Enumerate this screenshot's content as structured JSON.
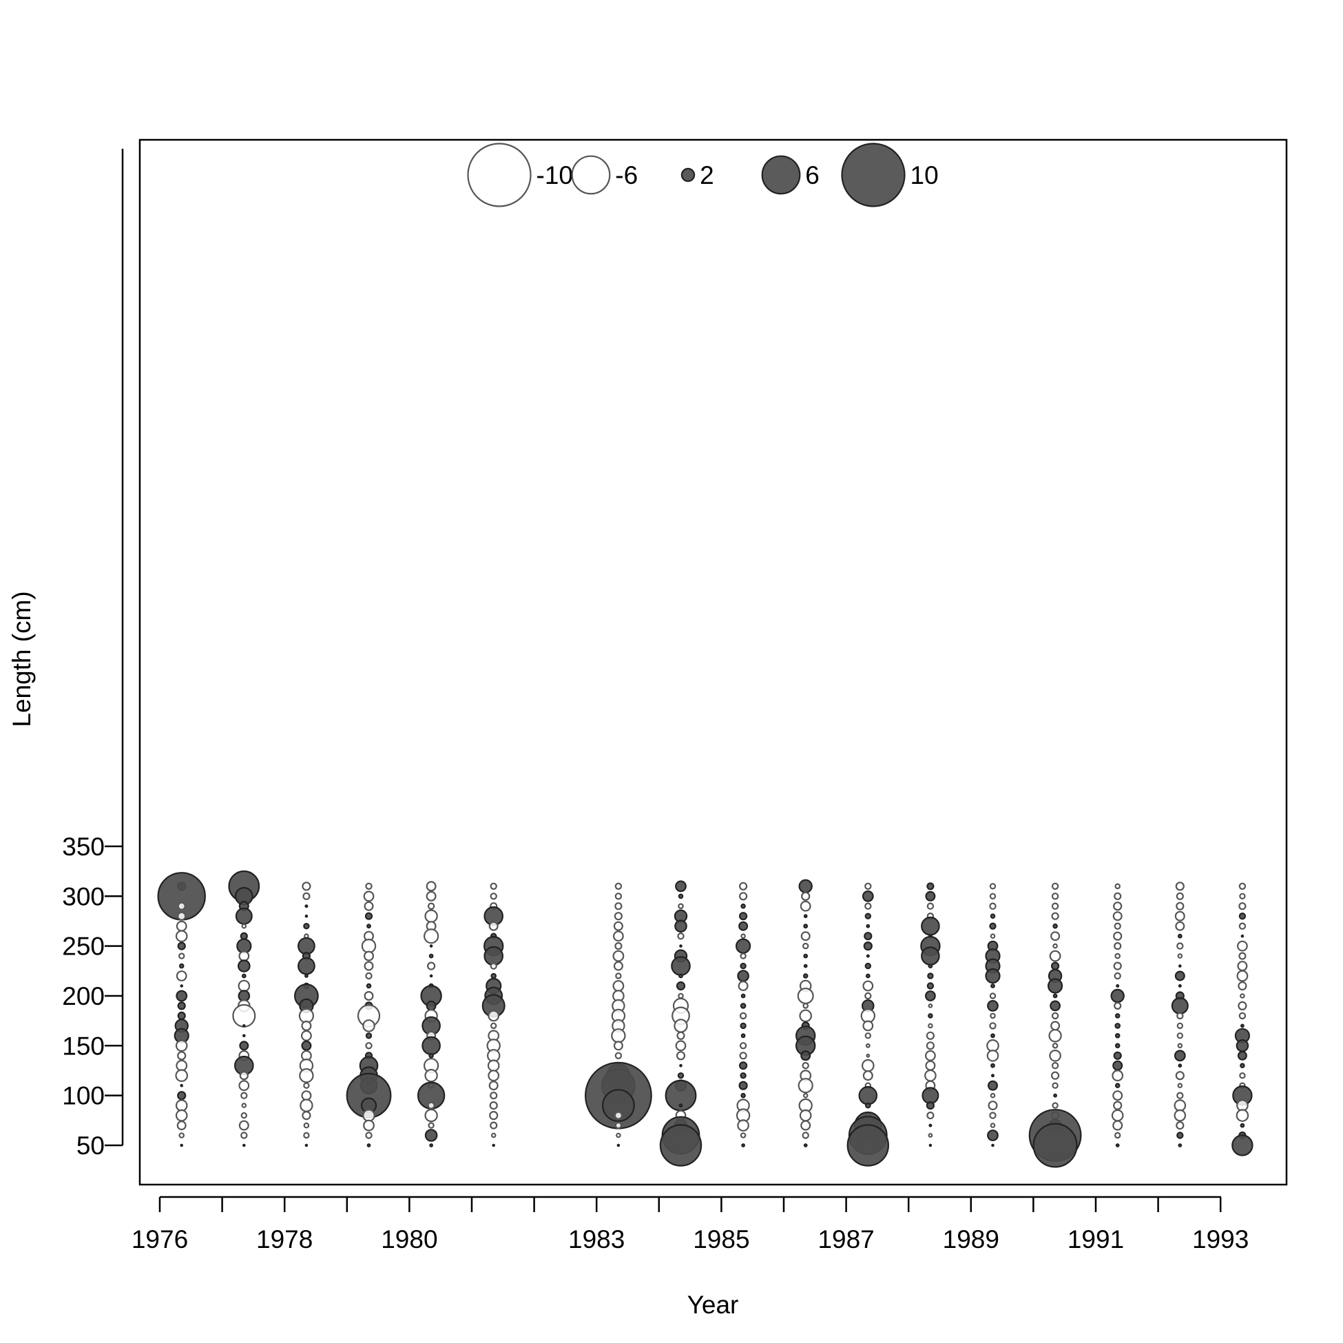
{
  "chart_data": {
    "type": "scatter",
    "subtype": "bubble",
    "title": "",
    "xlabel": "Year",
    "ylabel": "Length (cm)",
    "xlim": [
      1975.7,
      1994.1
    ],
    "ylim": [
      38,
      352
    ],
    "x_ticks": [
      1976,
      1977,
      1978,
      1979,
      1980,
      1981,
      1982,
      1983,
      1984,
      1985,
      1986,
      1987,
      1988,
      1989,
      1990,
      1991,
      1992,
      1993
    ],
    "x_tick_labels": [
      "1976",
      "1978",
      "1980",
      "1983",
      "1985",
      "1987",
      "1989",
      "1991",
      "1993"
    ],
    "y_ticks": [
      50,
      100,
      150,
      200,
      250,
      300,
      350
    ],
    "y_tick_labels": [
      "50",
      "100",
      "150",
      "200",
      "250",
      "300",
      "350"
    ],
    "grid": false,
    "legend": {
      "placement": "top-center",
      "entries": [
        {
          "label": "-10",
          "value": -10
        },
        {
          "label": "-6",
          "value": -6
        },
        {
          "label": "2",
          "value": 2
        },
        {
          "label": "6",
          "value": 6
        },
        {
          "label": "10",
          "value": 10
        }
      ]
    },
    "colors": {
      "positive_fill": "#4d4d4d",
      "positive_stroke": "#222222",
      "negative_fill": "#ffffff",
      "negative_stroke": "#555555"
    },
    "lengths": [
      310,
      300,
      290,
      280,
      270,
      260,
      250,
      240,
      230,
      220,
      210,
      200,
      190,
      180,
      170,
      160,
      150,
      140,
      130,
      120,
      110,
      100,
      90,
      80,
      70,
      60,
      50
    ],
    "series": [
      {
        "x": 1976.35,
        "residuals": [
          1.2,
          7.5,
          -1.1,
          -1.2,
          -1.5,
          -1.7,
          1.1,
          -0.8,
          0.6,
          -1.5,
          0.2,
          1.6,
          1.1,
          1.1,
          2.0,
          2.2,
          -1.7,
          -1.2,
          -1.6,
          -1.8,
          0.2,
          1.2,
          -1.7,
          -1.7,
          -1.3,
          -0.7,
          0.2
        ]
      },
      {
        "x": 1977.35,
        "residuals": [
          4.8,
          2.7,
          1.4,
          2.5,
          -0.6,
          1.0,
          2.2,
          -1.5,
          1.8,
          0.5,
          -1.7,
          1.7,
          -1.8,
          -3.5,
          0.2,
          0.2,
          1.3,
          -1.5,
          2.9,
          -1.2,
          -1.5,
          -0.9,
          -0.6,
          -0.8,
          -1.4,
          -0.9,
          0.2
        ]
      },
      {
        "x": 1978.35,
        "residuals": [
          -1.2,
          -1.0,
          0.3,
          0.2,
          0.8,
          -0.6,
          2.6,
          1.1,
          2.6,
          0.4,
          0.8,
          3.7,
          2.1,
          -2.2,
          -1.4,
          -1.5,
          1.4,
          -1.5,
          -2.0,
          -2.1,
          -0.8,
          -1.4,
          -1.9,
          -1.2,
          -0.7,
          -0.8,
          0.2
        ]
      },
      {
        "x": 1979.35,
        "residuals": [
          -0.9,
          -1.5,
          -1.3,
          1.0,
          0.5,
          -1.4,
          -2.1,
          -1.4,
          -1.3,
          -0.9,
          0.6,
          -1.3,
          1.1,
          -3.4,
          -1.8,
          0.8,
          -0.9,
          1.0,
          2.8,
          2.7,
          2.6,
          7.0,
          2.3,
          -1.8,
          -1.6,
          -0.9,
          0.4
        ]
      },
      {
        "x": 1980.35,
        "residuals": [
          -1.4,
          -1.4,
          -0.9,
          -1.9,
          -1.4,
          -2.2,
          0.2,
          0.5,
          -1.1,
          0.2,
          0.6,
          3.2,
          1.4,
          -1.9,
          2.8,
          -1.3,
          2.8,
          0.6,
          -2.2,
          -1.9,
          -0.8,
          4.2,
          -1.0,
          -1.9,
          -0.8,
          1.8,
          0.4
        ]
      },
      {
        "x": 1981.35,
        "residuals": [
          -0.9,
          -0.9,
          -1.0,
          2.9,
          -1.3,
          0.8,
          3.0,
          2.9,
          -0.9,
          0.7,
          2.3,
          2.7,
          3.5,
          -1.6,
          -0.8,
          -1.6,
          -2.0,
          -1.9,
          -1.7,
          -1.6,
          -1.3,
          -1.0,
          -1.1,
          -1.2,
          -1.0,
          -0.6,
          0.2
        ]
      },
      {
        "x": 1983.35,
        "residuals": [
          -0.9,
          -0.9,
          -1.0,
          -1.1,
          -1.3,
          -1.5,
          -1.0,
          -1.6,
          -1.3,
          -0.8,
          -1.6,
          -1.7,
          -1.9,
          -2.0,
          -1.9,
          -2.1,
          -1.3,
          -0.9,
          0.5,
          3.6,
          5.2,
          10.5,
          5.0,
          -1.1,
          -0.9,
          -0.6,
          0.2
        ]
      },
      {
        "x": 1984.35,
        "residuals": [
          1.6,
          0.6,
          -0.7,
          1.9,
          1.8,
          -0.9,
          0.2,
          1.9,
          2.9,
          0.5,
          1.2,
          -0.7,
          -2.3,
          -2.7,
          -2.0,
          -1.1,
          -1.5,
          -1.2,
          0.2,
          0.8,
          1.7,
          4.8,
          0.4,
          -1.5,
          1.9,
          5.9,
          6.5
        ]
      },
      {
        "x": 1985.35,
        "residuals": [
          -1.1,
          -1.1,
          0.6,
          1.1,
          1.3,
          -0.6,
          2.2,
          -0.8,
          0.8,
          1.7,
          -1.4,
          0.5,
          0.7,
          -0.9,
          0.8,
          0.5,
          -0.9,
          -1.0,
          1.1,
          0.8,
          1.2,
          0.6,
          -1.9,
          -2.0,
          -1.7,
          -0.7,
          0.4
        ]
      },
      {
        "x": 1986.35,
        "residuals": [
          2.0,
          -1.2,
          -1.5,
          0.4,
          0.5,
          -1.3,
          -0.8,
          0.5,
          0.4,
          0.6,
          -1.7,
          -2.4,
          -0.7,
          -1.8,
          1.1,
          3.0,
          3.0,
          1.4,
          -0.9,
          -1.6,
          -2.2,
          -0.6,
          -2.0,
          -1.7,
          -1.4,
          -0.9,
          0.4
        ]
      },
      {
        "x": 1987.35,
        "residuals": [
          -0.9,
          1.6,
          -0.9,
          0.8,
          0.4,
          1.1,
          1.2,
          0.3,
          0.8,
          0.5,
          -1.5,
          -0.9,
          1.8,
          -2.1,
          -1.5,
          -0.8,
          -0.5,
          -0.4,
          -1.8,
          -1.4,
          -0.8,
          2.8,
          0.7,
          -0.8,
          4.2,
          6.0,
          6.5
        ]
      },
      {
        "x": 1988.35,
        "residuals": [
          1.0,
          1.4,
          -0.9,
          -0.9,
          2.8,
          0.4,
          3.0,
          2.8,
          0.5,
          0.8,
          0.9,
          1.5,
          -0.5,
          0.6,
          -0.6,
          -1.1,
          -1.1,
          -1.5,
          -1.4,
          -1.7,
          -1.4,
          2.5,
          1.1,
          -1.0,
          0.3,
          -0.5,
          0.2
        ]
      },
      {
        "x": 1989.35,
        "residuals": [
          -0.8,
          -0.8,
          -0.9,
          0.6,
          0.9,
          -0.6,
          1.5,
          2.2,
          2.2,
          2.2,
          0.5,
          -0.8,
          1.6,
          -0.7,
          -0.9,
          0.5,
          -1.8,
          -1.7,
          0.5,
          0.3,
          1.4,
          -0.6,
          -1.3,
          -0.9,
          -0.6,
          1.6,
          0.2
        ]
      },
      {
        "x": 1990.35,
        "residuals": [
          -0.9,
          -0.9,
          -0.9,
          -1.0,
          0.6,
          -1.3,
          -0.6,
          -1.6,
          1.1,
          2.0,
          2.2,
          0.5,
          1.5,
          -0.9,
          -1.3,
          -1.9,
          -0.7,
          -1.7,
          -0.9,
          -1.1,
          -0.8,
          0.4,
          -0.8,
          -1.1,
          1.9,
          8.2,
          6.9
        ]
      },
      {
        "x": 1991.35,
        "residuals": [
          -0.7,
          -1.0,
          -1.2,
          -1.3,
          -0.9,
          -1.2,
          -1.0,
          -0.7,
          -1.1,
          -0.9,
          0.3,
          2.0,
          -1.0,
          0.6,
          0.7,
          0.6,
          0.6,
          1.1,
          1.4,
          -1.6,
          0.6,
          -1.4,
          -1.2,
          -1.7,
          -1.4,
          -0.8,
          0.4
        ]
      },
      {
        "x": 1992.35,
        "residuals": [
          -1.2,
          -1.0,
          -1.1,
          -1.4,
          -1.3,
          0.5,
          -0.9,
          -0.6,
          0.2,
          1.4,
          0.3,
          1.2,
          2.5,
          -0.9,
          -0.8,
          -0.8,
          -0.6,
          1.6,
          0.4,
          -1.2,
          -0.6,
          -0.9,
          -1.7,
          -1.7,
          -1.1,
          0.9,
          0.4
        ]
      },
      {
        "x": 1993.35,
        "residuals": [
          -0.9,
          -0.8,
          -1.0,
          0.9,
          -0.9,
          0.2,
          -1.5,
          -1.0,
          -1.4,
          -1.6,
          -1.2,
          -0.6,
          -1.2,
          -0.9,
          0.4,
          2.2,
          1.8,
          1.3,
          0.6,
          -0.8,
          -0.8,
          3.0,
          -1.7,
          -1.8,
          0.5,
          1.0,
          3.2
        ]
      }
    ]
  }
}
